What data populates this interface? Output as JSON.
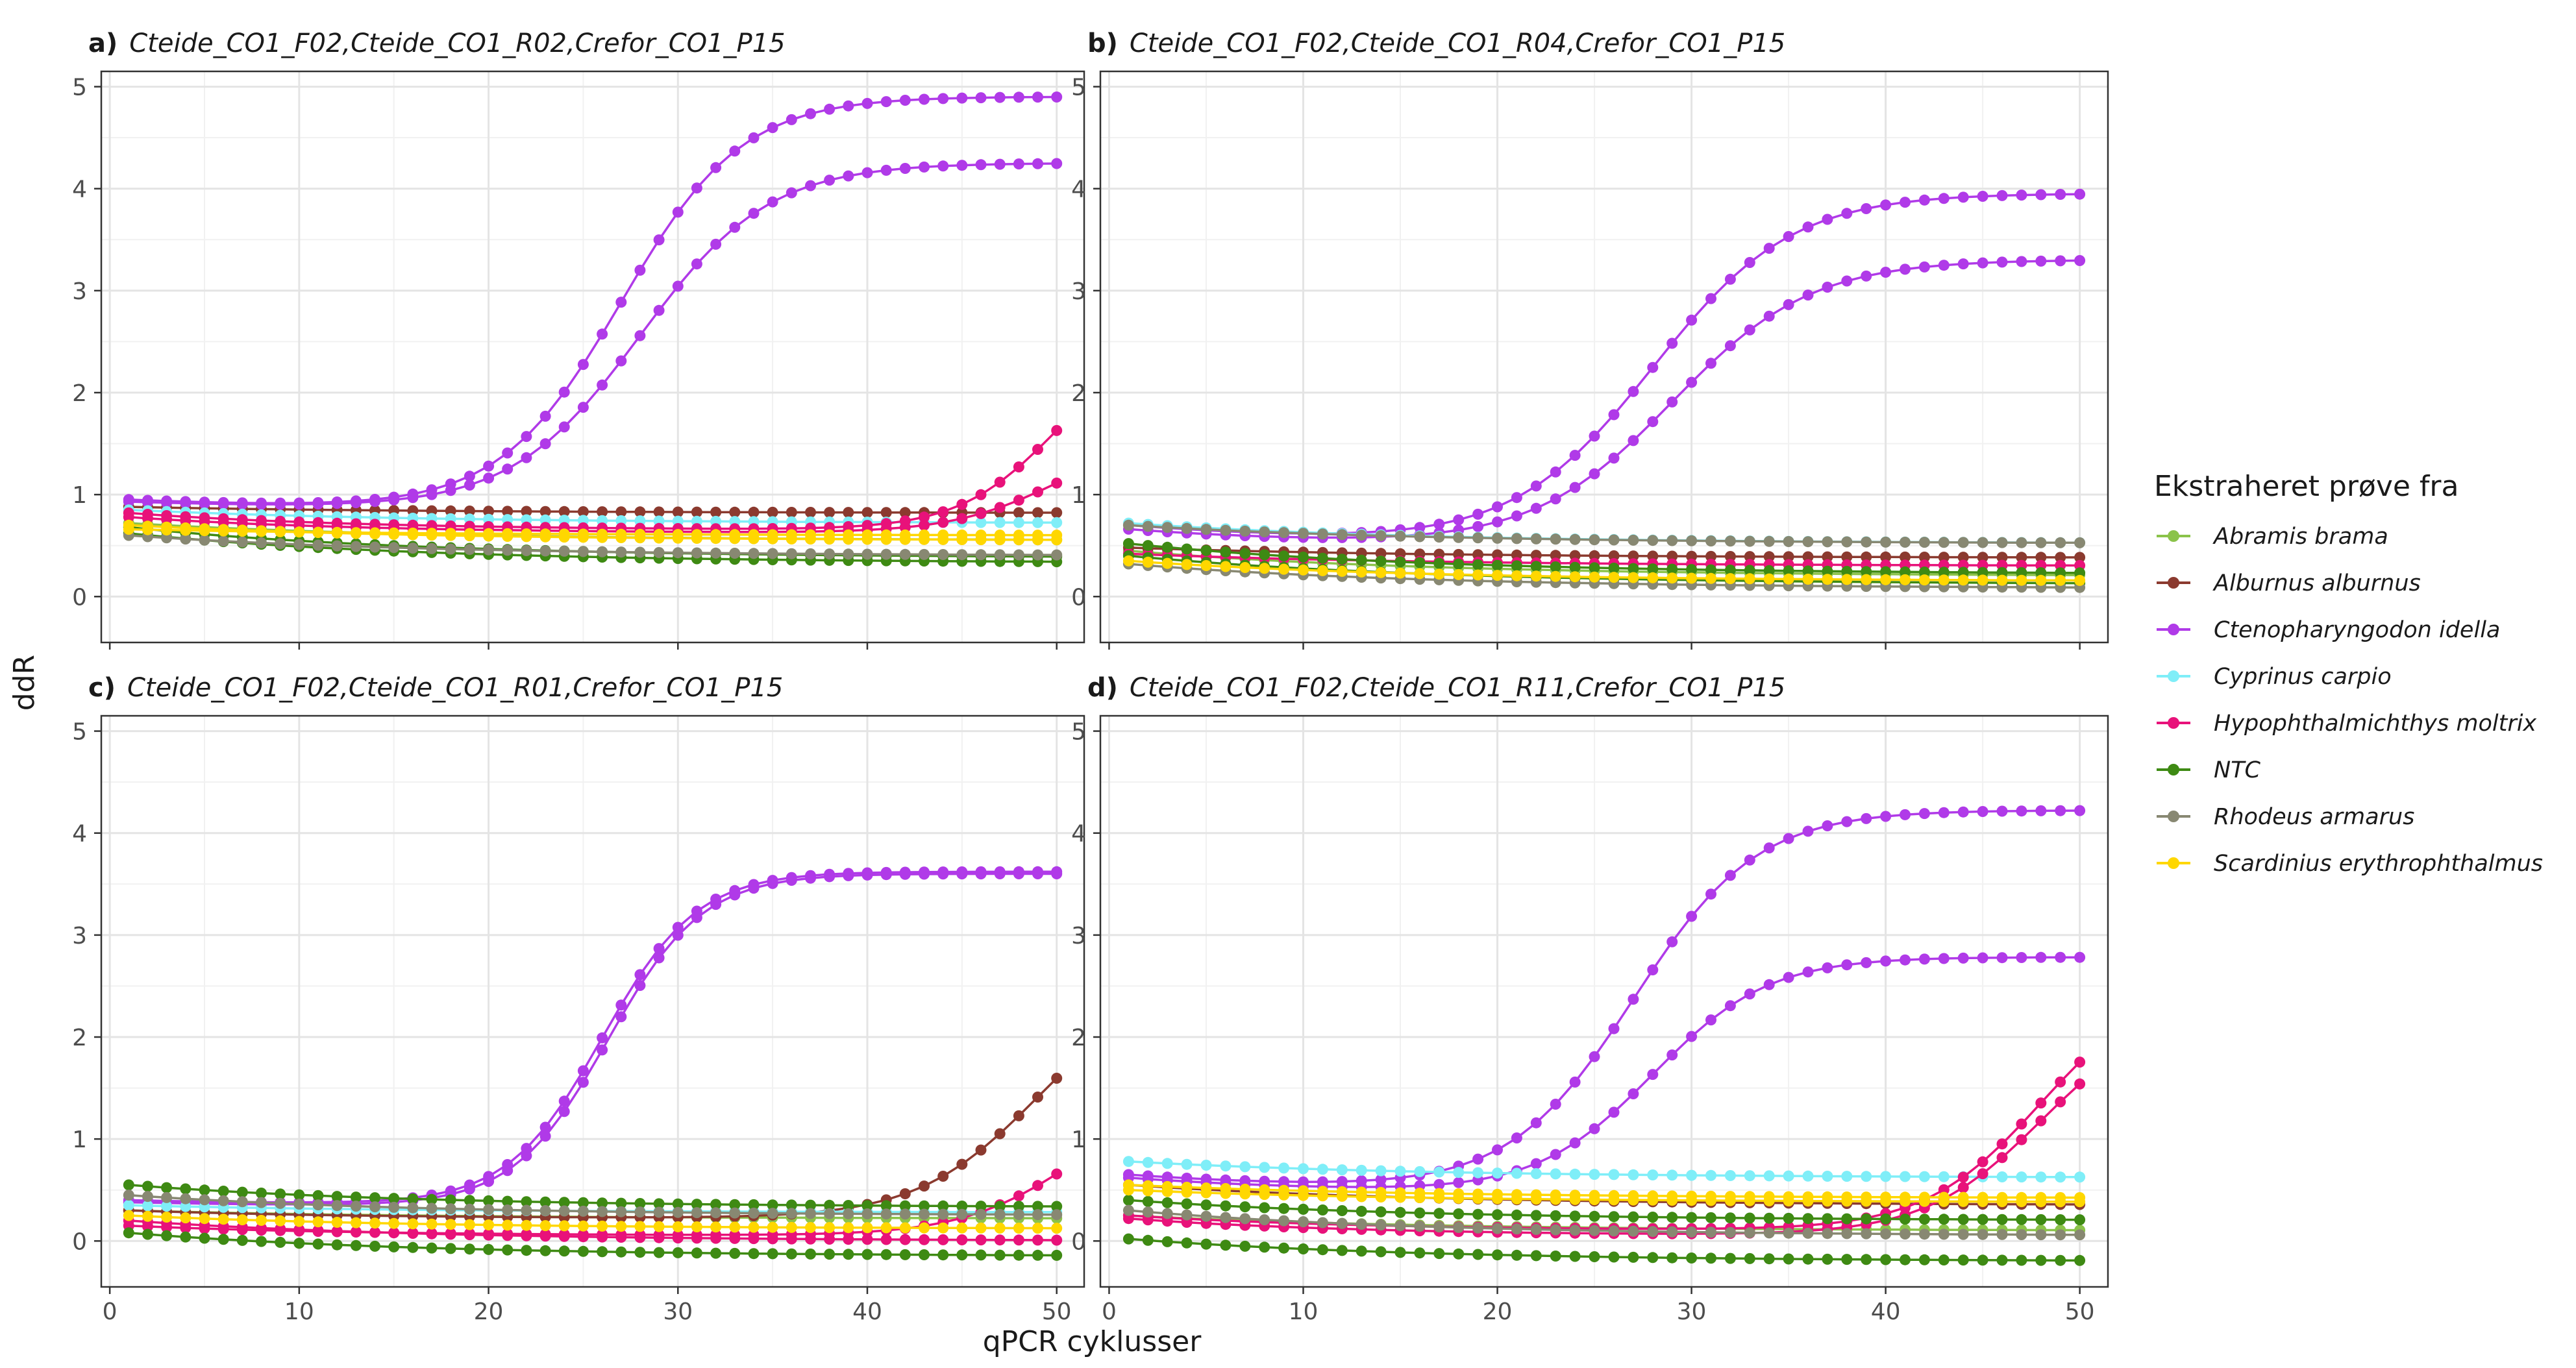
{
  "figure": {
    "ylabel": "ddR",
    "xlabel": "qPCR cyklusser"
  },
  "legend": {
    "title": "Ekstraheret prøve fra",
    "entries": [
      {
        "name": "Abramis brama",
        "color": "#8BC34A"
      },
      {
        "name": "Alburnus alburnus",
        "color": "#8B3A2F"
      },
      {
        "name": "Ctenopharyngodon idella",
        "color": "#B03AE8"
      },
      {
        "name": "Cyprinus carpio",
        "color": "#7FEEF8"
      },
      {
        "name": "Hypophthalmichthys moltrix",
        "color": "#E8127A"
      },
      {
        "name": "NTC",
        "color": "#3E8A13"
      },
      {
        "name": "Rhodeus armarus",
        "color": "#888872"
      },
      {
        "name": "Scardinius erythrophthalmus",
        "color": "#FFD700"
      }
    ]
  },
  "chart_data": [
    {
      "type": "line",
      "panel_label": "a)",
      "title": "Cteide_CO1_F02,Cteide_CO1_R02,Crefor_CO1_P15",
      "xlim": [
        1,
        50
      ],
      "ylim": [
        -0.45,
        5.15
      ],
      "xticks": [
        0,
        10,
        20,
        30,
        40,
        50
      ],
      "yticks": [
        0,
        1,
        2,
        3,
        4,
        5
      ],
      "grid": true,
      "show_x_tick_labels": false,
      "series": [
        {
          "name": "Abramis brama",
          "kind": "flat",
          "start": 0.72,
          "end": 0.55
        },
        {
          "name": "Alburnus alburnus",
          "kind": "flat",
          "start": 0.88,
          "end": 0.82
        },
        {
          "name": "Ctenopharyngodon idella",
          "kind": "sigmoid",
          "start": 0.95,
          "base_end": 0.85,
          "plateau": 4.9,
          "midpoint": 27,
          "slope": 3.2
        },
        {
          "name": "Ctenopharyngodon idella",
          "kind": "sigmoid",
          "start": 0.93,
          "base_end": 0.85,
          "plateau": 4.25,
          "midpoint": 28,
          "slope": 3.4
        },
        {
          "name": "Cyprinus carpio",
          "kind": "flat",
          "start": 0.85,
          "end": 0.72
        },
        {
          "name": "Hypophthalmichthys moltrix",
          "kind": "sigmoid",
          "start": 0.82,
          "base_end": 0.65,
          "plateau": 2.6,
          "midpoint": 50,
          "slope": 2.6
        },
        {
          "name": "Hypophthalmichthys moltrix",
          "kind": "sigmoid",
          "start": 0.78,
          "base_end": 0.62,
          "plateau": 1.6,
          "midpoint": 50,
          "slope": 2.8
        },
        {
          "name": "NTC",
          "kind": "flat",
          "start": 0.62,
          "end": 0.33
        },
        {
          "name": "NTC",
          "kind": "flat",
          "start": 0.68,
          "end": 0.38
        },
        {
          "name": "Rhodeus armarus",
          "kind": "flat",
          "start": 0.6,
          "end": 0.4
        },
        {
          "name": "Scardinius erythrophthalmus",
          "kind": "flat",
          "start": 0.7,
          "end": 0.55
        },
        {
          "name": "Scardinius erythrophthalmus",
          "kind": "flat",
          "start": 0.66,
          "end": 0.6
        }
      ]
    },
    {
      "type": "line",
      "panel_label": "b)",
      "title": "Cteide_CO1_F02,Cteide_CO1_R04,Crefor_CO1_P15",
      "xlim": [
        1,
        50
      ],
      "ylim": [
        -0.45,
        5.15
      ],
      "xticks": [
        0,
        10,
        20,
        30,
        40,
        50
      ],
      "yticks": [
        0,
        1,
        2,
        3,
        4,
        5
      ],
      "grid": true,
      "show_x_tick_labels": false,
      "series": [
        {
          "name": "Abramis brama",
          "kind": "flat",
          "start": 0.45,
          "end": 0.2
        },
        {
          "name": "Alburnus alburnus",
          "kind": "flat",
          "start": 0.48,
          "end": 0.38
        },
        {
          "name": "Ctenopharyngodon idella",
          "kind": "sigmoid",
          "start": 0.7,
          "base_end": 0.5,
          "plateau": 3.95,
          "midpoint": 28,
          "slope": 3.6
        },
        {
          "name": "Ctenopharyngodon idella",
          "kind": "sigmoid",
          "start": 0.66,
          "base_end": 0.48,
          "plateau": 3.3,
          "midpoint": 29,
          "slope": 3.6
        },
        {
          "name": "Cyprinus carpio",
          "kind": "flat",
          "start": 0.72,
          "end": 0.52
        },
        {
          "name": "Hypophthalmichthys moltrix",
          "kind": "flat",
          "start": 0.42,
          "end": 0.3
        },
        {
          "name": "NTC",
          "kind": "flat",
          "start": 0.52,
          "end": 0.22
        },
        {
          "name": "NTC",
          "kind": "flat",
          "start": 0.4,
          "end": 0.12
        },
        {
          "name": "Rhodeus armarus",
          "kind": "flat",
          "start": 0.32,
          "end": 0.08
        },
        {
          "name": "Rhodeus armarus",
          "kind": "flat",
          "start": 0.7,
          "end": 0.52
        },
        {
          "name": "Scardinius erythrophthalmus",
          "kind": "flat",
          "start": 0.35,
          "end": 0.15
        }
      ]
    },
    {
      "type": "line",
      "panel_label": "c)",
      "title": "Cteide_CO1_F02,Cteide_CO1_R01,Crefor_CO1_P15",
      "xlim": [
        1,
        50
      ],
      "ylim": [
        -0.45,
        5.15
      ],
      "xticks": [
        0,
        10,
        20,
        30,
        40,
        50
      ],
      "yticks": [
        0,
        1,
        2,
        3,
        4,
        5
      ],
      "grid": true,
      "show_x_tick_labels": true,
      "series": [
        {
          "name": "Abramis brama",
          "kind": "flat",
          "start": 0.3,
          "end": 0.22
        },
        {
          "name": "Alburnus alburnus",
          "kind": "sigmoid",
          "start": 0.3,
          "base_end": 0.22,
          "plateau": 2.6,
          "midpoint": 49,
          "slope": 3.2
        },
        {
          "name": "Ctenopharyngodon idella",
          "kind": "sigmoid",
          "start": 0.4,
          "base_end": 0.35,
          "plateau": 3.62,
          "midpoint": 26,
          "slope": 2.5
        },
        {
          "name": "Ctenopharyngodon idella",
          "kind": "sigmoid",
          "start": 0.38,
          "base_end": 0.33,
          "plateau": 3.6,
          "midpoint": 26.3,
          "slope": 2.5
        },
        {
          "name": "Cyprinus carpio",
          "kind": "flat",
          "start": 0.35,
          "end": 0.28
        },
        {
          "name": "Hypophthalmichthys moltrix",
          "kind": "sigmoid",
          "start": 0.15,
          "base_end": 0.05,
          "plateau": 1.5,
          "midpoint": 51,
          "slope": 3.0
        },
        {
          "name": "Hypophthalmichthys moltrix",
          "kind": "flat",
          "start": 0.2,
          "end": 0.0
        },
        {
          "name": "NTC",
          "kind": "flat",
          "start": 0.55,
          "end": 0.33
        },
        {
          "name": "NTC",
          "kind": "flat",
          "start": 0.08,
          "end": -0.15
        },
        {
          "name": "Rhodeus armarus",
          "kind": "flat",
          "start": 0.45,
          "end": 0.25
        },
        {
          "name": "Scardinius erythrophthalmus",
          "kind": "flat",
          "start": 0.25,
          "end": 0.12
        }
      ]
    },
    {
      "type": "line",
      "panel_label": "d)",
      "title": "Cteide_CO1_F02,Cteide_CO1_R11,Crefor_CO1_P15",
      "xlim": [
        1,
        50
      ],
      "ylim": [
        -0.45,
        5.15
      ],
      "xticks": [
        0,
        10,
        20,
        30,
        40,
        50
      ],
      "yticks": [
        0,
        1,
        2,
        3,
        4,
        5
      ],
      "grid": true,
      "show_x_tick_labels": true,
      "series": [
        {
          "name": "Abramis brama",
          "kind": "flat",
          "start": 0.25,
          "end": 0.1
        },
        {
          "name": "Alburnus alburnus",
          "kind": "flat",
          "start": 0.55,
          "end": 0.35
        },
        {
          "name": "Ctenopharyngodon idella",
          "kind": "sigmoid",
          "start": 0.65,
          "base_end": 0.48,
          "plateau": 4.22,
          "midpoint": 27,
          "slope": 3.2
        },
        {
          "name": "Ctenopharyngodon idella",
          "kind": "sigmoid",
          "start": 0.62,
          "base_end": 0.45,
          "plateau": 2.78,
          "midpoint": 28,
          "slope": 3.0
        },
        {
          "name": "Cyprinus carpio",
          "kind": "flat",
          "start": 0.78,
          "end": 0.62
        },
        {
          "name": "Hypophthalmichthys moltrix",
          "kind": "sigmoid",
          "start": 0.25,
          "base_end": 0.1,
          "plateau": 2.6,
          "midpoint": 48,
          "slope": 3.0
        },
        {
          "name": "Hypophthalmichthys moltrix",
          "kind": "sigmoid",
          "start": 0.22,
          "base_end": 0.05,
          "plateau": 2.3,
          "midpoint": 48,
          "slope": 3.0
        },
        {
          "name": "NTC",
          "kind": "flat",
          "start": 0.4,
          "end": 0.2
        },
        {
          "name": "NTC",
          "kind": "flat",
          "start": 0.02,
          "end": -0.2
        },
        {
          "name": "Rhodeus armarus",
          "kind": "flat",
          "start": 0.3,
          "end": 0.05
        },
        {
          "name": "Scardinius erythrophthalmus",
          "kind": "flat",
          "start": 0.55,
          "end": 0.42
        },
        {
          "name": "Scardinius erythrophthalmus",
          "kind": "flat",
          "start": 0.5,
          "end": 0.38
        }
      ]
    }
  ]
}
